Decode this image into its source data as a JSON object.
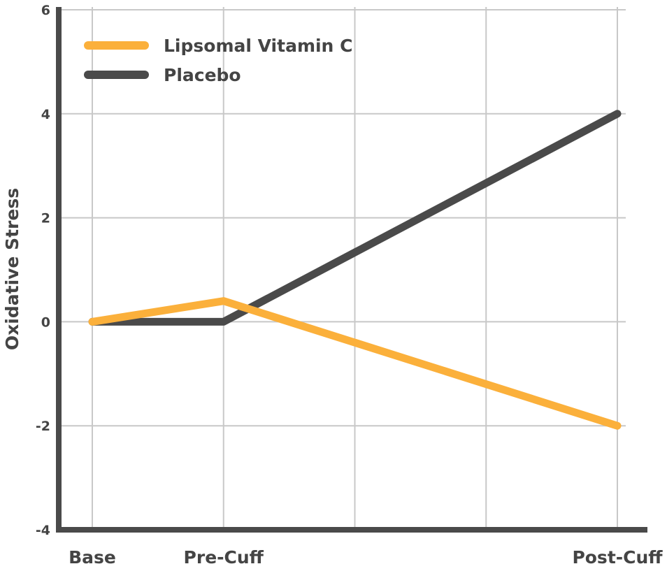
{
  "chart_data": {
    "type": "line",
    "title": "",
    "xlabel": "",
    "ylabel": "Oxidative Stress",
    "x_positions": [
      0,
      1,
      2,
      3,
      4
    ],
    "x_tick_labels": [
      {
        "pos": 0,
        "label": "Base"
      },
      {
        "pos": 1,
        "label": "Pre-Cuff"
      },
      {
        "pos": 4,
        "label": "Post-Cuff"
      }
    ],
    "xlim": [
      0,
      4
    ],
    "ylim": [
      -4,
      6
    ],
    "yticks": [
      -4,
      -2,
      0,
      2,
      4,
      6
    ],
    "grid": true,
    "legend_position": "top-left",
    "series": [
      {
        "name": "Lipsomal Vitamin C",
        "color": "#FBB03B",
        "points": [
          [
            0,
            0
          ],
          [
            1,
            0.4
          ],
          [
            4,
            -2
          ]
        ]
      },
      {
        "name": "Placebo",
        "color": "#4A4A4A",
        "points": [
          [
            0,
            0
          ],
          [
            1,
            0
          ],
          [
            4,
            4
          ]
        ]
      }
    ]
  }
}
